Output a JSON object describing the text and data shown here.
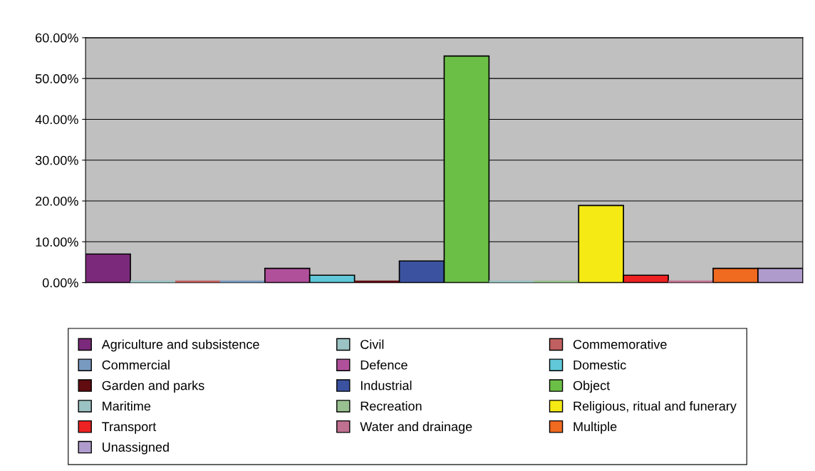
{
  "chart_data": {
    "type": "bar",
    "categories": [
      null,
      null,
      null,
      null,
      null,
      null,
      null,
      null,
      null,
      null,
      null,
      null,
      null,
      null,
      null,
      null
    ],
    "series": [
      {
        "name": "Agriculture and subsistence",
        "color": "#7b2a7b",
        "values": [
          7.0,
          null,
          null,
          null,
          null,
          null,
          null,
          null,
          null,
          null,
          null,
          null,
          null,
          null,
          null,
          null
        ]
      },
      {
        "name": "Civil",
        "color": "#9cc3c3",
        "values": [
          null,
          0,
          null,
          null,
          null,
          null,
          null,
          null,
          null,
          null,
          null,
          null,
          null,
          null,
          null,
          null
        ]
      },
      {
        "name": "Commemorative",
        "color": "#c06060",
        "values": [
          null,
          null,
          0,
          null,
          null,
          null,
          null,
          null,
          null,
          null,
          null,
          null,
          null,
          null,
          null,
          null
        ]
      },
      {
        "name": "Commercial",
        "color": "#7899c0",
        "values": [
          null,
          null,
          null,
          0,
          null,
          null,
          null,
          null,
          null,
          null,
          null,
          null,
          null,
          null,
          null,
          null
        ]
      },
      {
        "name": "Defence",
        "color": "#b0509a",
        "values": [
          null,
          null,
          null,
          null,
          3.5,
          null,
          null,
          null,
          null,
          null,
          null,
          null,
          null,
          null,
          null,
          null
        ]
      },
      {
        "name": "Domestic",
        "color": "#60c8d8",
        "values": [
          null,
          null,
          null,
          null,
          null,
          1.8,
          null,
          null,
          null,
          null,
          null,
          null,
          null,
          null,
          null,
          null
        ]
      },
      {
        "name": "Garden and parks",
        "color": "#600c10",
        "values": [
          null,
          null,
          null,
          null,
          null,
          null,
          0,
          null,
          null,
          null,
          null,
          null,
          null,
          null,
          null,
          null
        ]
      },
      {
        "name": "Industrial",
        "color": "#3a52a0",
        "values": [
          null,
          null,
          null,
          null,
          null,
          null,
          null,
          5.3,
          null,
          null,
          null,
          null,
          null,
          null,
          null,
          null
        ]
      },
      {
        "name": "Object",
        "color": "#6cbf46",
        "values": [
          null,
          null,
          null,
          null,
          null,
          null,
          null,
          null,
          55.5,
          null,
          null,
          null,
          null,
          null,
          null,
          null
        ]
      },
      {
        "name": "Maritime",
        "color": "#9cc3c3",
        "values": [
          null,
          null,
          null,
          null,
          null,
          null,
          null,
          null,
          null,
          0,
          null,
          null,
          null,
          null,
          null,
          null
        ]
      },
      {
        "name": "Recreation",
        "color": "#98c090",
        "values": [
          null,
          null,
          null,
          null,
          null,
          null,
          null,
          null,
          null,
          null,
          0,
          null,
          null,
          null,
          null,
          null
        ]
      },
      {
        "name": "Religious, ritual and funerary",
        "color": "#f5ea14",
        "values": [
          null,
          null,
          null,
          null,
          null,
          null,
          null,
          null,
          null,
          null,
          null,
          18.9,
          null,
          null,
          null,
          null
        ]
      },
      {
        "name": "Transport",
        "color": "#ee2222",
        "values": [
          null,
          null,
          null,
          null,
          null,
          null,
          null,
          null,
          null,
          null,
          null,
          null,
          1.8,
          null,
          null,
          null
        ]
      },
      {
        "name": "Water and drainage",
        "color": "#c07090",
        "values": [
          null,
          null,
          null,
          null,
          null,
          null,
          null,
          null,
          null,
          null,
          null,
          null,
          null,
          0,
          null,
          null
        ]
      },
      {
        "name": "Multiple",
        "color": "#f06a20",
        "values": [
          null,
          null,
          null,
          null,
          null,
          null,
          null,
          null,
          null,
          null,
          null,
          null,
          null,
          null,
          3.5,
          null
        ]
      },
      {
        "name": "Unassigned",
        "color": "#b09ccc",
        "values": [
          null,
          null,
          null,
          null,
          null,
          null,
          null,
          null,
          null,
          null,
          null,
          null,
          null,
          null,
          null,
          3.5
        ]
      }
    ],
    "ylim": [
      0,
      60
    ],
    "yticks": [
      {
        "value": 0,
        "label": "0.00%"
      },
      {
        "value": 10,
        "label": "10.00%"
      },
      {
        "value": 20,
        "label": "20.00%"
      },
      {
        "value": 30,
        "label": "30.00%"
      },
      {
        "value": 40,
        "label": "40.00%"
      },
      {
        "value": 50,
        "label": "50.00%"
      },
      {
        "value": 60,
        "label": "60.00%"
      }
    ],
    "grid": "y",
    "legend": "bottom"
  }
}
